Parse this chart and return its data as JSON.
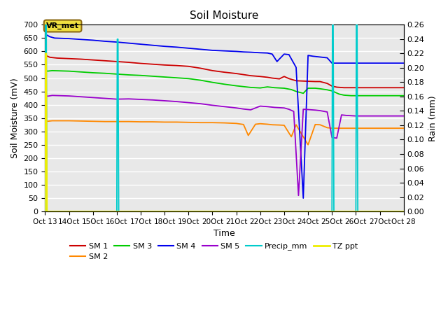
{
  "title": "Soil Moisture",
  "xlabel": "Time",
  "ylabel_left": "Soil Moisture (mV)",
  "ylabel_right": "Rain (mm)",
  "ylim_left": [
    0,
    700
  ],
  "ylim_right": [
    0,
    0.26
  ],
  "yticks_left": [
    0,
    50,
    100,
    150,
    200,
    250,
    300,
    350,
    400,
    450,
    500,
    550,
    600,
    650,
    700
  ],
  "yticks_right": [
    0.0,
    0.02,
    0.04,
    0.06,
    0.08,
    0.1,
    0.12,
    0.14,
    0.16,
    0.18,
    0.2,
    0.22,
    0.24,
    0.26
  ],
  "bg_color": "#e8e8e8",
  "grid_color": "white",
  "SM1_color": "#cc0000",
  "SM2_color": "#ff8800",
  "SM3_color": "#00cc00",
  "SM4_color": "#0000ee",
  "SM5_color": "#9900cc",
  "Precip_color": "#00cccc",
  "TZppt_color": "#eeee00",
  "annotation_text": "VR_met",
  "SM1_x": [
    13.0,
    13.1,
    13.2,
    13.5,
    14.0,
    14.5,
    15.0,
    15.5,
    16.0,
    16.5,
    17.0,
    17.5,
    18.0,
    18.5,
    19.0,
    19.5,
    20.0,
    20.5,
    21.0,
    21.3,
    21.6,
    22.0,
    22.3,
    22.5,
    22.8,
    23.0,
    23.2,
    23.5,
    24.0,
    24.3,
    24.5,
    24.8,
    25.0,
    25.1,
    25.2,
    25.5,
    26.0,
    26.5,
    27.0,
    27.5,
    28.0
  ],
  "SM1_y": [
    585,
    582,
    578,
    575,
    573,
    571,
    568,
    565,
    562,
    559,
    555,
    552,
    549,
    547,
    544,
    537,
    528,
    522,
    517,
    513,
    509,
    506,
    503,
    500,
    497,
    506,
    498,
    490,
    488,
    487,
    487,
    480,
    470,
    468,
    466,
    464,
    464,
    464,
    464,
    464,
    464
  ],
  "SM2_x": [
    13.0,
    13.1,
    13.3,
    14.0,
    14.5,
    15.0,
    15.5,
    16.0,
    16.5,
    17.0,
    17.5,
    18.0,
    18.5,
    19.0,
    19.5,
    20.0,
    20.5,
    21.0,
    21.3,
    21.5,
    21.8,
    22.0,
    22.3,
    22.5,
    22.8,
    23.0,
    23.3,
    23.5,
    24.0,
    24.3,
    24.5,
    24.8,
    25.0,
    25.5,
    26.0,
    26.5,
    27.0,
    27.5,
    28.0
  ],
  "SM2_y": [
    342,
    338,
    340,
    340,
    339,
    338,
    337,
    337,
    337,
    336,
    336,
    335,
    335,
    334,
    333,
    333,
    332,
    330,
    326,
    285,
    327,
    329,
    327,
    325,
    324,
    323,
    280,
    325,
    250,
    326,
    325,
    314,
    312,
    312,
    312,
    312,
    312,
    312,
    312
  ],
  "SM3_x": [
    13.0,
    13.1,
    13.3,
    14.0,
    14.5,
    15.0,
    15.5,
    16.0,
    16.5,
    17.0,
    17.5,
    18.0,
    18.5,
    19.0,
    19.5,
    20.0,
    20.5,
    21.0,
    21.3,
    21.6,
    22.0,
    22.3,
    22.6,
    23.0,
    23.3,
    23.5,
    23.8,
    24.0,
    24.3,
    24.5,
    24.8,
    25.0,
    25.3,
    25.5,
    25.8,
    26.0,
    26.5,
    27.0,
    27.5,
    28.0
  ],
  "SM3_y": [
    530,
    526,
    528,
    526,
    523,
    520,
    518,
    515,
    512,
    510,
    507,
    504,
    501,
    498,
    492,
    484,
    477,
    471,
    468,
    465,
    463,
    467,
    464,
    462,
    457,
    450,
    443,
    462,
    462,
    460,
    456,
    452,
    440,
    436,
    434,
    434,
    434,
    434,
    434,
    434
  ],
  "SM4_x": [
    13.0,
    13.1,
    13.2,
    13.4,
    14.0,
    14.5,
    15.0,
    15.5,
    16.0,
    16.5,
    17.0,
    17.5,
    18.0,
    18.5,
    19.0,
    19.5,
    20.0,
    20.5,
    21.0,
    21.3,
    21.6,
    22.0,
    22.3,
    22.5,
    22.7,
    23.0,
    23.2,
    23.5,
    23.8,
    24.0,
    24.2,
    24.4,
    24.6,
    24.8,
    25.0,
    25.2,
    25.5,
    26.0,
    26.5,
    27.0,
    27.5,
    28.0
  ],
  "SM4_y": [
    665,
    660,
    655,
    650,
    648,
    645,
    642,
    638,
    635,
    631,
    627,
    623,
    619,
    616,
    612,
    608,
    604,
    602,
    600,
    598,
    597,
    595,
    594,
    590,
    562,
    590,
    588,
    540,
    50,
    585,
    582,
    580,
    578,
    576,
    556,
    556,
    556,
    556,
    556,
    556,
    556,
    556
  ],
  "SM5_x": [
    13.0,
    13.1,
    13.3,
    14.0,
    14.5,
    15.0,
    15.5,
    16.0,
    16.5,
    17.0,
    17.5,
    18.0,
    18.5,
    19.0,
    19.5,
    20.0,
    20.5,
    21.0,
    21.3,
    21.6,
    22.0,
    22.3,
    22.6,
    23.0,
    23.2,
    23.4,
    23.6,
    23.8,
    24.0,
    24.3,
    24.5,
    24.8,
    25.0,
    25.1,
    25.2,
    25.4,
    25.6,
    26.0,
    26.5,
    27.0,
    27.5,
    28.0
  ],
  "SM5_y": [
    438,
    432,
    435,
    433,
    430,
    427,
    424,
    421,
    422,
    420,
    418,
    415,
    412,
    408,
    404,
    398,
    393,
    388,
    384,
    381,
    395,
    393,
    390,
    388,
    383,
    375,
    60,
    383,
    382,
    380,
    378,
    373,
    278,
    276,
    275,
    362,
    360,
    358,
    358,
    358,
    358,
    358
  ],
  "precip_x": [
    13.0,
    13.02,
    13.05,
    13.08,
    16.0,
    16.02,
    16.05,
    16.08,
    17.0,
    25.0,
    25.02,
    25.05,
    25.08,
    26.0,
    26.02,
    26.05,
    26.08,
    27.0,
    28.0
  ],
  "precip_y": [
    0.0,
    0.26,
    0.26,
    0.0,
    0.0,
    0.24,
    0.24,
    0.0,
    0.0,
    0.0,
    0.26,
    0.26,
    0.0,
    0.0,
    0.26,
    0.26,
    0.0,
    0.0,
    0.0
  ],
  "tzppt_x": [
    13.0,
    13.02,
    13.05,
    13.08,
    14.0,
    28.0
  ],
  "tzppt_y": [
    0.0,
    0.22,
    0.22,
    0.0,
    0.0,
    0.0
  ],
  "legend_order": [
    "SM 1",
    "SM 2",
    "SM 3",
    "SM 4",
    "SM 5",
    "Precip_mm",
    "TZ ppt"
  ]
}
